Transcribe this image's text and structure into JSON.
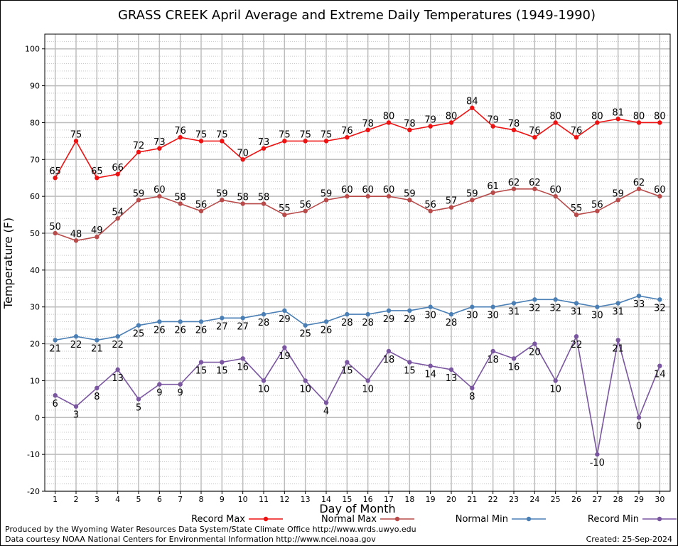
{
  "chart_data": {
    "type": "line",
    "title": "GRASS CREEK April Average and Extreme Daily Temperatures (1949-1990)",
    "xlabel": "Day of Month",
    "ylabel": "Temperature (F)",
    "x": [
      1,
      2,
      3,
      4,
      5,
      6,
      7,
      8,
      9,
      10,
      11,
      12,
      13,
      14,
      15,
      16,
      17,
      18,
      19,
      20,
      21,
      22,
      23,
      24,
      25,
      26,
      27,
      28,
      29,
      30
    ],
    "xlim": [
      0.5,
      30.5
    ],
    "ylim": [
      -20,
      104
    ],
    "yticks": [
      -20,
      -10,
      0,
      10,
      20,
      30,
      40,
      50,
      60,
      70,
      80,
      90,
      100
    ],
    "grid": true,
    "legend_position": "bottom",
    "series": [
      {
        "name": "Record Max",
        "color": "#ee1111",
        "label_pos": "above",
        "values": [
          65,
          75,
          65,
          66,
          72,
          73,
          76,
          75,
          75,
          70,
          73,
          75,
          75,
          75,
          76,
          78,
          80,
          78,
          79,
          80,
          84,
          79,
          78,
          76,
          80,
          76,
          80,
          81,
          80,
          80
        ]
      },
      {
        "name": "Normal Max",
        "color": "#b84a4a",
        "label_pos": "above",
        "values": [
          50,
          48,
          49,
          54,
          59,
          60,
          58,
          56,
          59,
          58,
          58,
          55,
          56,
          59,
          60,
          60,
          60,
          59,
          56,
          57,
          59,
          61,
          62,
          62,
          60,
          55,
          56,
          59,
          62,
          60
        ]
      },
      {
        "name": "Normal Min",
        "color": "#4a7fb5",
        "label_pos": "below",
        "values": [
          21,
          22,
          21,
          22,
          25,
          26,
          26,
          26,
          27,
          27,
          28,
          29,
          25,
          26,
          28,
          28,
          29,
          29,
          30,
          28,
          30,
          30,
          31,
          32,
          32,
          31,
          30,
          31,
          33,
          32
        ]
      },
      {
        "name": "Record Min",
        "color": "#7a55a0",
        "label_pos": "below",
        "values": [
          6,
          3,
          8,
          13,
          5,
          9,
          9,
          15,
          15,
          16,
          10,
          19,
          10,
          4,
          15,
          10,
          18,
          15,
          14,
          13,
          8,
          18,
          16,
          20,
          10,
          22,
          -10,
          21,
          0,
          14
        ]
      }
    ]
  },
  "footer": {
    "produced_by": "Produced by the Wyoming Water Resources Data System/State Climate Office http://www.wrds.uwyo.edu",
    "courtesy": "Data courtesy NOAA National Centers for Environmental Information http://www.ncei.noaa.gov",
    "created": "Created: 25-Sep-2024"
  }
}
